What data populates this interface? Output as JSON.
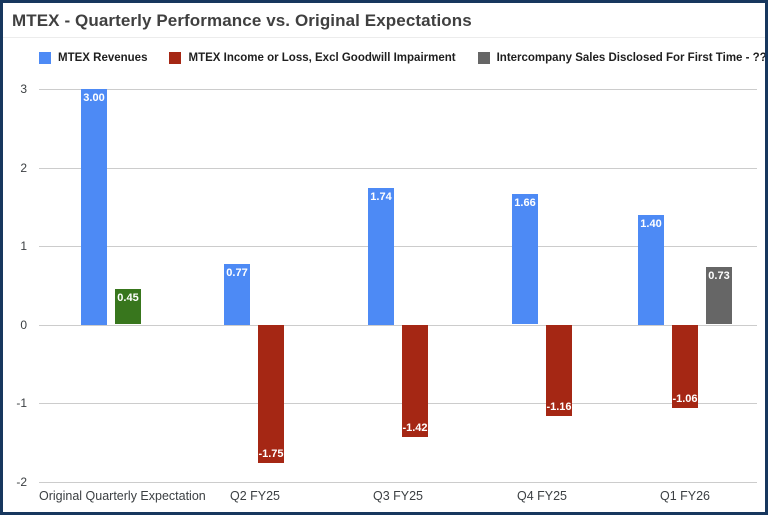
{
  "frame": {
    "border_color": "#17375e",
    "background": "#ffffff"
  },
  "chart_data": {
    "type": "bar",
    "title": "MTEX - Quarterly Performance vs. Original Expectations",
    "legend_position": "top",
    "grid": true,
    "ylim": [
      -2,
      3
    ],
    "yticks": [
      "3",
      "2",
      "1",
      "0",
      "-1",
      "-2"
    ],
    "legend": [
      {
        "label": "MTEX Revenues",
        "color": "#4d8af5"
      },
      {
        "label": "MTEX Income or Loss, Excl Goodwill Impairment",
        "color": "#a52714"
      },
      {
        "label": "Intercompany Sales Disclosed For First Time - ?????",
        "color": "#666666"
      }
    ],
    "categories": [
      "Original Quarterly Expectation",
      "Q2 FY25",
      "Q3 FY25",
      "Q4 FY25",
      "Q1 FY26"
    ],
    "series": [
      {
        "name": "MTEX Revenues",
        "values": [
          3.0,
          0.77,
          1.74,
          1.66,
          1.4
        ]
      },
      {
        "name": "MTEX Income or Loss, Excl Goodwill Impairment",
        "values": [
          0.45,
          -1.75,
          -1.42,
          -1.16,
          -1.06
        ]
      },
      {
        "name": "Intercompany Sales Disclosed For First Time - ?????",
        "values": [
          null,
          null,
          null,
          null,
          0.73
        ]
      }
    ],
    "groups": [
      {
        "category": "Original Quarterly Expectation",
        "bars": [
          {
            "series": "MTEX Revenues",
            "value": 3.0,
            "label": "3.00",
            "color": "#4d8af5"
          },
          {
            "series": "MTEX Income or Loss, Excl Goodwill Impairment",
            "value": 0.45,
            "label": "0.45",
            "color": "#38761d"
          }
        ]
      },
      {
        "category": "Q2 FY25",
        "bars": [
          {
            "series": "MTEX Revenues",
            "value": 0.77,
            "label": "0.77",
            "color": "#4d8af5"
          },
          {
            "series": "MTEX Income or Loss, Excl Goodwill Impairment",
            "value": -1.75,
            "label": "-1.75",
            "color": "#a52714"
          }
        ]
      },
      {
        "category": "Q3 FY25",
        "bars": [
          {
            "series": "MTEX Revenues",
            "value": 1.74,
            "label": "1.74",
            "color": "#4d8af5"
          },
          {
            "series": "MTEX Income or Loss, Excl Goodwill Impairment",
            "value": -1.42,
            "label": "-1.42",
            "color": "#a52714"
          }
        ]
      },
      {
        "category": "Q4 FY25",
        "bars": [
          {
            "series": "MTEX Revenues",
            "value": 1.66,
            "label": "1.66",
            "color": "#4d8af5"
          },
          {
            "series": "MTEX Income or Loss, Excl Goodwill Impairment",
            "value": -1.16,
            "label": "-1.16",
            "color": "#a52714"
          }
        ]
      },
      {
        "category": "Q1 FY26",
        "bars": [
          {
            "series": "MTEX Revenues",
            "value": 1.4,
            "label": "1.40",
            "color": "#4d8af5"
          },
          {
            "series": "MTEX Income or Loss, Excl Goodwill Impairment",
            "value": -1.06,
            "label": "-1.06",
            "color": "#a52714"
          },
          {
            "series": "Intercompany Sales Disclosed For First Time - ?????",
            "value": 0.73,
            "label": "0.73",
            "color": "#666666"
          }
        ]
      }
    ]
  }
}
